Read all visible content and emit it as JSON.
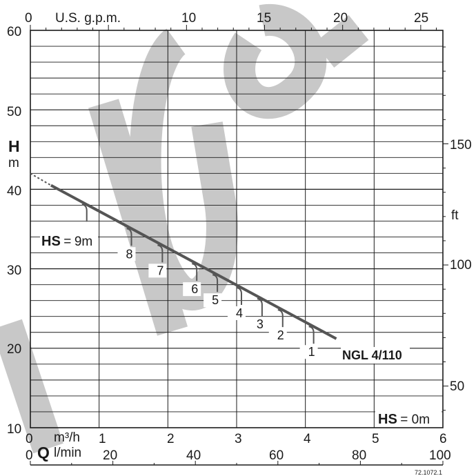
{
  "chart_data": {
    "type": "line",
    "watermark": "Pumps",
    "watermark_color": "#c8c8c8",
    "axes": {
      "y_left": {
        "label": "H",
        "unit": "m",
        "range": [
          10,
          60
        ],
        "ticks": [
          "10",
          "20",
          "30",
          "40",
          "50",
          "60"
        ]
      },
      "y_right": {
        "unit": "ft",
        "ticks": [
          "50",
          "100",
          "150"
        ]
      },
      "x_top": {
        "label": "U.S. g.p.m.",
        "ticks": [
          "0",
          "5",
          "10",
          "15",
          "20",
          "25"
        ]
      },
      "x_bottom_1": {
        "label": "Q",
        "unit": "m³/h",
        "range": [
          0,
          6
        ],
        "ticks": [
          "0",
          "1",
          "2",
          "3",
          "4",
          "5",
          "6"
        ]
      },
      "x_bottom_2": {
        "unit": "l/min",
        "ticks": [
          "0",
          "20",
          "40",
          "60",
          "80",
          "100"
        ]
      }
    },
    "grid": true,
    "series": [
      {
        "name": "NGL 4/110",
        "color": "#555555",
        "points": [
          [
            0.3,
            40.5
          ],
          [
            4.45,
            21.2
          ]
        ],
        "extrapolated_start": [
          [
            0.0,
            42.0
          ],
          [
            0.3,
            40.5
          ]
        ]
      }
    ],
    "suction_marks": [
      {
        "label": "HS",
        "value": "9m",
        "q": 0.8,
        "h": 37.7
      },
      {
        "label": "8",
        "q": 1.45,
        "h": 34.6
      },
      {
        "label": "7",
        "q": 1.9,
        "h": 32.5
      },
      {
        "label": "6",
        "q": 2.4,
        "h": 30.2
      },
      {
        "label": "5",
        "q": 2.7,
        "h": 28.8
      },
      {
        "label": "4",
        "q": 3.05,
        "h": 27.2
      },
      {
        "label": "3",
        "q": 3.35,
        "h": 25.8
      },
      {
        "label": "2",
        "q": 3.65,
        "h": 24.4
      },
      {
        "label": "1",
        "q": 4.1,
        "h": 22.3
      }
    ],
    "annotations": {
      "hs_bottom_label": "HS",
      "hs_bottom_value": "= 0m",
      "hs_top_sep": "=",
      "hs_top_value": "9m"
    },
    "code": "72.1072.1"
  }
}
